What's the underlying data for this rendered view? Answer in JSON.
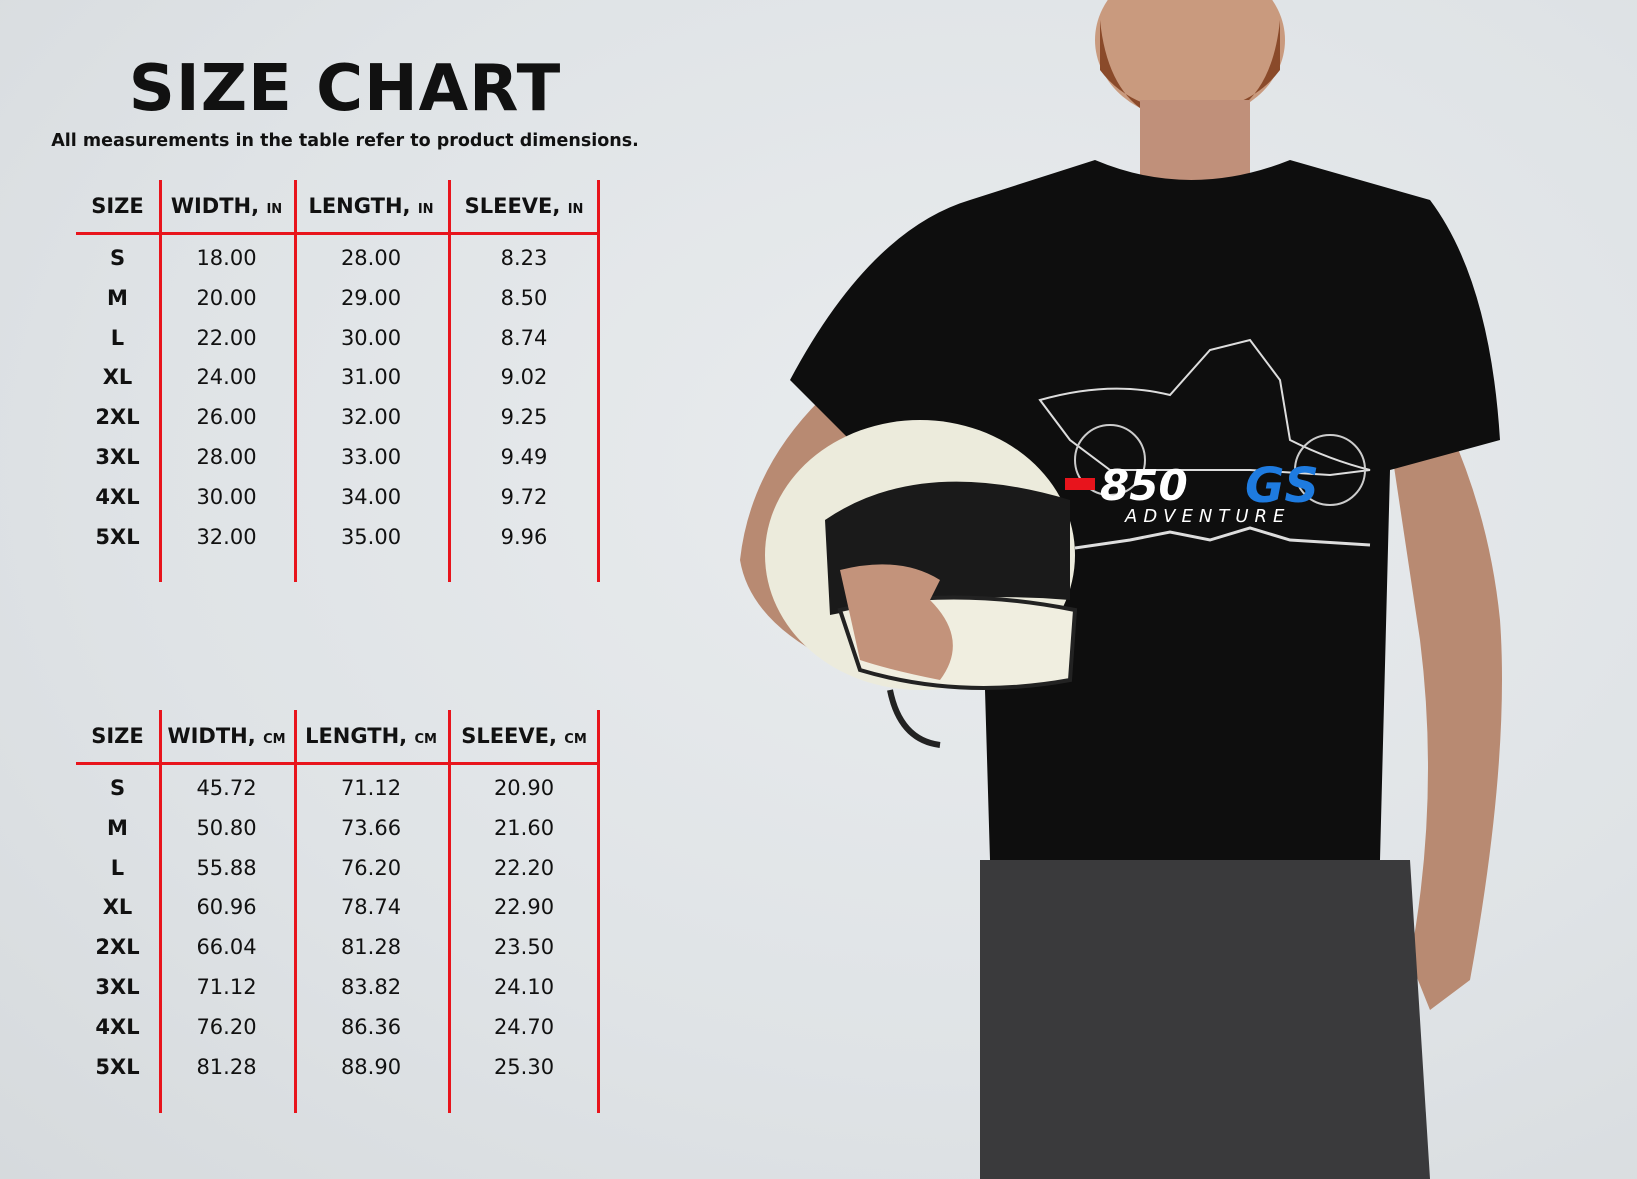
{
  "title": "SIZE CHART",
  "subtitle": "All measurements in the table refer to product dimensions.",
  "colors": {
    "accent_lines": "#e8141c",
    "logo_red": "#e8141c",
    "logo_blue": "#1e7be0",
    "shirt": "#0e0e0e"
  },
  "tables": [
    {
      "headers": [
        {
          "label": "SIZE",
          "unit": ""
        },
        {
          "label": "WIDTH, ",
          "unit": "IN"
        },
        {
          "label": "LENGTH, ",
          "unit": "IN"
        },
        {
          "label": "SLEEVE, ",
          "unit": "IN"
        }
      ],
      "rows": [
        [
          "S",
          "18.00",
          "28.00",
          "8.23"
        ],
        [
          "M",
          "20.00",
          "29.00",
          "8.50"
        ],
        [
          "L",
          "22.00",
          "30.00",
          "8.74"
        ],
        [
          "XL",
          "24.00",
          "31.00",
          "9.02"
        ],
        [
          "2XL",
          "26.00",
          "32.00",
          "9.25"
        ],
        [
          "3XL",
          "28.00",
          "33.00",
          "9.49"
        ],
        [
          "4XL",
          "30.00",
          "34.00",
          "9.72"
        ],
        [
          "5XL",
          "32.00",
          "35.00",
          "9.96"
        ]
      ]
    },
    {
      "headers": [
        {
          "label": "SIZE",
          "unit": ""
        },
        {
          "label": "WIDTH, ",
          "unit": "CM"
        },
        {
          "label": "LENGTH, ",
          "unit": "CM"
        },
        {
          "label": "SLEEVE, ",
          "unit": "CM"
        }
      ],
      "rows": [
        [
          "S",
          "45.72",
          "71.12",
          "20.90"
        ],
        [
          "M",
          "50.80",
          "73.66",
          "21.60"
        ],
        [
          "L",
          "55.88",
          "76.20",
          "22.20"
        ],
        [
          "XL",
          "60.96",
          "78.74",
          "22.90"
        ],
        [
          "2XL",
          "66.04",
          "81.28",
          "23.50"
        ],
        [
          "3XL",
          "71.12",
          "83.82",
          "24.10"
        ],
        [
          "4XL",
          "76.20",
          "86.36",
          "24.70"
        ],
        [
          "5XL",
          "81.28",
          "88.90",
          "25.30"
        ]
      ]
    }
  ],
  "logo": {
    "model": "850",
    "series": "GS",
    "tagline": "ADVENTURE"
  }
}
